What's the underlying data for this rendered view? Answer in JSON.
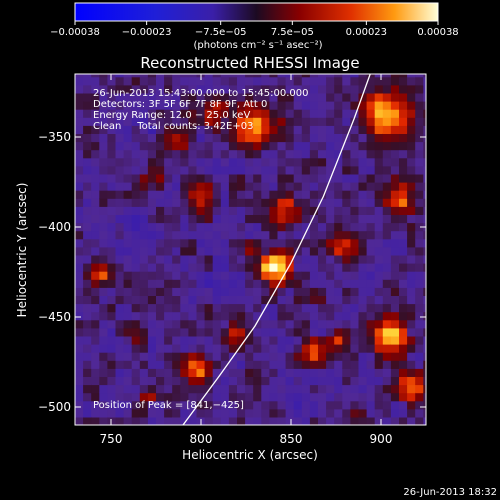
{
  "chart_data": {
    "type": "heatmap",
    "title": "Reconstructed RHESSI Image",
    "xlabel": "Heliocentric X (arcsec)",
    "ylabel": "Heliocentric Y (arcsec)",
    "xlim": [
      730,
      925
    ],
    "ylim": [
      -510,
      -315
    ],
    "x_ticks": [
      750,
      800,
      850,
      900
    ],
    "y_ticks": [
      -350,
      -400,
      -450,
      -500
    ],
    "x_tick_labels": [
      "750",
      "800",
      "850",
      "900"
    ],
    "y_tick_labels": [
      "−350",
      "−400",
      "−450",
      "−500"
    ],
    "colorbar": {
      "ticks": [
        -0.00038,
        -0.00023,
        -7.5e-05,
        7.5e-05,
        0.00023,
        0.00038
      ],
      "tick_labels": [
        "−0.00038",
        "−0.00023",
        "−7.5e−05",
        "7.5e−05",
        "0.00023",
        "0.00038"
      ],
      "units_label": "(photons cm⁻² s⁻¹ asec⁻²)",
      "range": [
        -0.00038,
        0.00038
      ]
    },
    "annotations": [
      "26-Jun-2013 15:43:00.000 to 15:45:00.000",
      "Detectors: 3F 5F 6F 7F 8F 9F, Att 0",
      "Energy Range: 12.0 − 25.0 keV",
      "Clean     Total counts: 3.42E+03"
    ],
    "peak_label": "Position of Peak = [841,−425]",
    "peak": [
      841,
      -425
    ],
    "limb_arc": [
      [
        790,
        -510
      ],
      [
        810,
        -483
      ],
      [
        830,
        -455
      ],
      [
        850,
        -420
      ],
      [
        868,
        -383
      ],
      [
        885,
        -340
      ],
      [
        894,
        -315
      ]
    ],
    "hotspots": [
      {
        "x": 841,
        "y": -422,
        "v": 0.00038,
        "r": 9
      },
      {
        "x": 830,
        "y": -344,
        "v": 0.0003,
        "r": 12
      },
      {
        "x": 846,
        "y": -392,
        "v": 0.00026,
        "r": 9
      },
      {
        "x": 800,
        "y": -384,
        "v": 0.00024,
        "r": 8
      },
      {
        "x": 785,
        "y": -352,
        "v": 0.0002,
        "r": 8
      },
      {
        "x": 808,
        "y": -338,
        "v": 0.00018,
        "r": 9
      },
      {
        "x": 903,
        "y": -338,
        "v": 0.0003,
        "r": 14
      },
      {
        "x": 912,
        "y": -385,
        "v": 0.00022,
        "r": 10
      },
      {
        "x": 880,
        "y": -410,
        "v": 0.00018,
        "r": 9
      },
      {
        "x": 745,
        "y": -425,
        "v": 0.00026,
        "r": 6
      },
      {
        "x": 798,
        "y": -478,
        "v": 0.00028,
        "r": 8
      },
      {
        "x": 820,
        "y": -462,
        "v": 0.0002,
        "r": 7
      },
      {
        "x": 862,
        "y": -470,
        "v": 0.00022,
        "r": 8
      },
      {
        "x": 876,
        "y": -462,
        "v": 0.00018,
        "r": 6
      },
      {
        "x": 905,
        "y": -460,
        "v": 0.00034,
        "r": 10
      },
      {
        "x": 918,
        "y": -488,
        "v": 0.00026,
        "r": 9
      },
      {
        "x": 775,
        "y": -372,
        "v": 0.00012,
        "r": 7
      },
      {
        "x": 760,
        "y": -458,
        "v": 0.00012,
        "r": 6
      },
      {
        "x": 828,
        "y": -412,
        "v": 0.00014,
        "r": 5
      },
      {
        "x": 867,
        "y": -440,
        "v": 0.00012,
        "r": 6
      },
      {
        "x": 770,
        "y": -495,
        "v": 0.00014,
        "r": 5
      },
      {
        "x": 888,
        "y": -505,
        "v": 0.00012,
        "r": 6
      }
    ],
    "coldspots": [
      {
        "x": 762,
        "y": -398,
        "v": -0.0001,
        "r": 9
      },
      {
        "x": 772,
        "y": -345,
        "v": -8e-05,
        "r": 7
      },
      {
        "x": 810,
        "y": -430,
        "v": -9e-05,
        "r": 8
      },
      {
        "x": 855,
        "y": -500,
        "v": -0.00012,
        "r": 6
      },
      {
        "x": 895,
        "y": -428,
        "v": -8e-05,
        "r": 7
      },
      {
        "x": 740,
        "y": -470,
        "v": -6e-05,
        "r": 6
      }
    ]
  },
  "footer": {
    "timestamp": "26-Jun-2013 18:32"
  }
}
